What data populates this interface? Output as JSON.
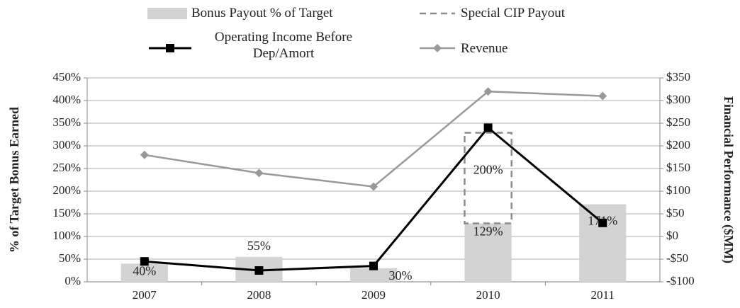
{
  "chart_data": {
    "type": "bar",
    "stacked": true,
    "categories": [
      "2007",
      "2008",
      "2009",
      "2010",
      "2011"
    ],
    "series": [
      {
        "name": "Bonus Payout % of Target",
        "type": "bar",
        "color": "#d3d3d3",
        "values": [
          40,
          55,
          30,
          129,
          171
        ],
        "value_labels": [
          "40%",
          "55%",
          "30%",
          "129%",
          "171%"
        ]
      },
      {
        "name": "Special CIP Payout",
        "type": "bar",
        "color": "#8c8c8c",
        "dashed": true,
        "values": [
          null,
          null,
          null,
          200,
          null
        ],
        "value_labels": [
          null,
          null,
          null,
          "200%",
          null
        ]
      },
      {
        "name": "Operating Income Before Dep/Amort",
        "type": "line",
        "axis": "y2",
        "marker": "square",
        "color": "#000000",
        "values": [
          -55,
          -75,
          -65,
          240,
          30
        ]
      },
      {
        "name": "Revenue",
        "type": "line",
        "axis": "y2",
        "marker": "diamond",
        "color": "#999999",
        "values": [
          180,
          140,
          110,
          320,
          310
        ]
      }
    ],
    "y_label": "% of Target Bonus Earned",
    "y2_label": "Financial Performance ($MM)",
    "ylim": [
      0,
      450
    ],
    "yticks": [
      {
        "value": 0,
        "label": "0%"
      },
      {
        "value": 50,
        "label": "50%"
      },
      {
        "value": 100,
        "label": "100%"
      },
      {
        "value": 150,
        "label": "150%"
      },
      {
        "value": 200,
        "label": "200%"
      },
      {
        "value": 250,
        "label": "250%"
      },
      {
        "value": 300,
        "label": "300%"
      },
      {
        "value": 350,
        "label": "350%"
      },
      {
        "value": 400,
        "label": "400%"
      },
      {
        "value": 450,
        "label": "450%"
      }
    ],
    "y2lim": [
      -100,
      350
    ],
    "y2ticks": [
      {
        "value": -100,
        "label": "-$100"
      },
      {
        "value": -50,
        "label": "-$50"
      },
      {
        "value": 0,
        "label": "$0"
      },
      {
        "value": 50,
        "label": "$50"
      },
      {
        "value": 100,
        "label": "$100"
      },
      {
        "value": 150,
        "label": "$150"
      },
      {
        "value": 200,
        "label": "$200"
      },
      {
        "value": 250,
        "label": "$250"
      },
      {
        "value": 300,
        "label": "$300"
      },
      {
        "value": 350,
        "label": "$350"
      }
    ],
    "grid": true
  }
}
